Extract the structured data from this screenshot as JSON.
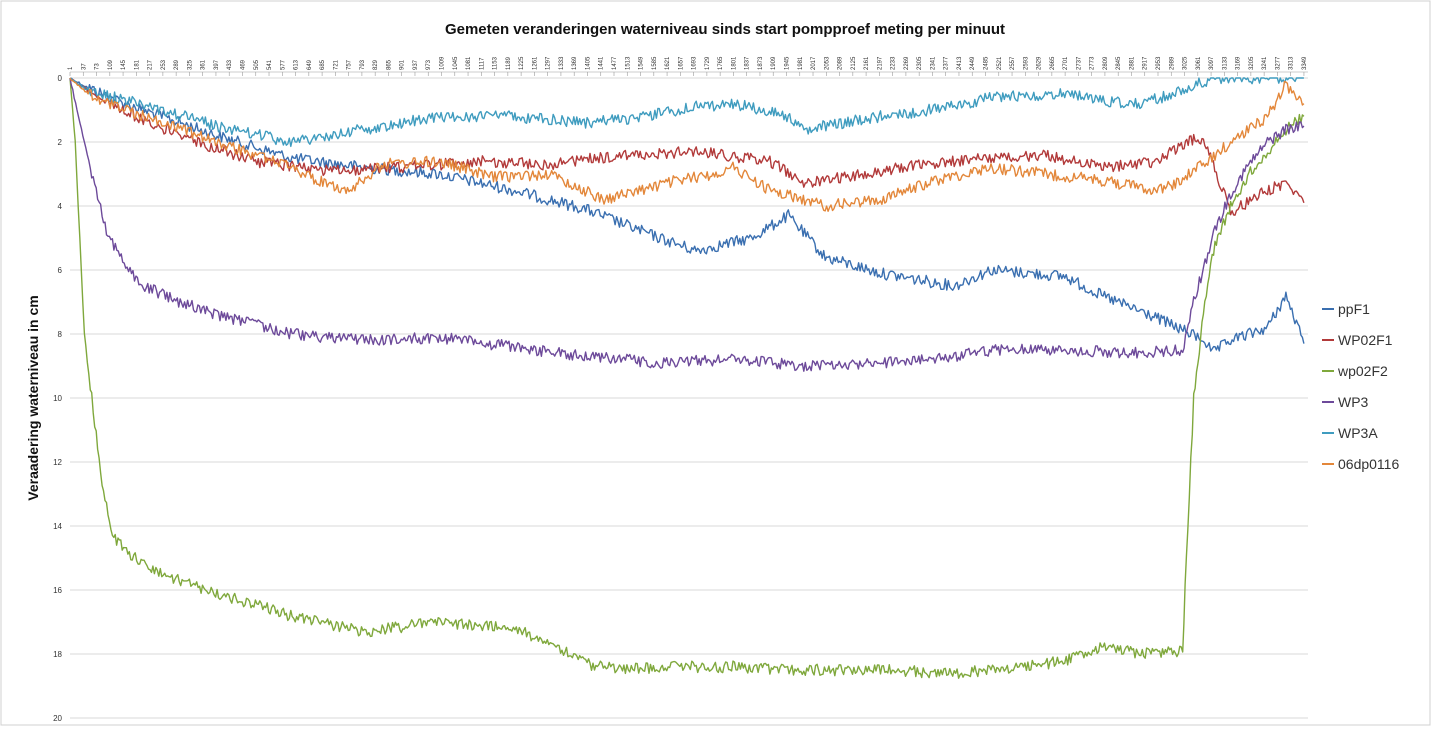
{
  "chart_data": {
    "type": "line",
    "title": "Gemeten veranderingen waterniveau sinds start pompproef meting per minuut",
    "ylabel": "Veraadering waterniveau in cm",
    "xlabel": "",
    "y_inverted": true,
    "ylim": [
      0,
      20
    ],
    "yticks": [
      "0",
      "2",
      "4",
      "6",
      "8",
      "10",
      "12",
      "14",
      "16",
      "18",
      "20"
    ],
    "xlim": [
      1,
      3360
    ],
    "xticks": [
      "1",
      "37",
      "73",
      "109",
      "145",
      "181",
      "217",
      "253",
      "289",
      "325",
      "361",
      "397",
      "433",
      "469",
      "505",
      "541",
      "577",
      "613",
      "649",
      "685",
      "721",
      "757",
      "793",
      "829",
      "865",
      "901",
      "937",
      "973",
      "1009",
      "1045",
      "1081",
      "1117",
      "1153",
      "1189",
      "1225",
      "1261",
      "1297",
      "1333",
      "1369",
      "1405",
      "1441",
      "1477",
      "1513",
      "1549",
      "1585",
      "1621",
      "1657",
      "1693",
      "1729",
      "1765",
      "1801",
      "1837",
      "1873",
      "1909",
      "1945",
      "1981",
      "2017",
      "2053",
      "2089",
      "2125",
      "2161",
      "2197",
      "2233",
      "2269",
      "2305",
      "2341",
      "2377",
      "2413",
      "2449",
      "2485",
      "2521",
      "2557",
      "2593",
      "2629",
      "2665",
      "2701",
      "2737",
      "2773",
      "2809",
      "2845",
      "2881",
      "2917",
      "2953",
      "2989",
      "3025",
      "3061",
      "3097",
      "3133",
      "3169",
      "3205",
      "3241",
      "3277",
      "3313",
      "3349"
    ],
    "grid": true,
    "legend_position": "right",
    "series": [
      {
        "name": "ppF1",
        "color": "#3a6fb0",
        "x": [
          1,
          50,
          150,
          250,
          400,
          600,
          800,
          1000,
          1200,
          1400,
          1600,
          1700,
          1850,
          1950,
          2050,
          2200,
          2400,
          2500,
          2700,
          2800,
          2950,
          3080,
          3100,
          3150,
          3250,
          3300,
          3349
        ],
        "y": [
          0,
          0.3,
          0.8,
          1.2,
          1.8,
          2.5,
          2.8,
          3.0,
          3.5,
          4.1,
          5.0,
          5.4,
          5.0,
          4.3,
          5.6,
          6.1,
          6.5,
          6.0,
          6.2,
          6.8,
          7.5,
          8.2,
          8.6,
          8.2,
          7.8,
          6.8,
          8.3
        ]
      },
      {
        "name": "WP02F1",
        "color": "#b23a3a",
        "x": [
          1,
          100,
          300,
          500,
          700,
          900,
          1100,
          1300,
          1500,
          1700,
          1900,
          2000,
          2150,
          2300,
          2500,
          2650,
          2800,
          2950,
          3020,
          3050,
          3080,
          3150,
          3250,
          3300,
          3349
        ],
        "y": [
          0,
          0.8,
          1.8,
          2.6,
          2.9,
          2.8,
          2.6,
          2.7,
          2.4,
          2.3,
          2.6,
          3.3,
          3.0,
          2.7,
          2.5,
          2.4,
          2.8,
          2.6,
          2.1,
          1.9,
          2.0,
          4.2,
          3.5,
          3.3,
          3.9
        ]
      },
      {
        "name": "wp02F2",
        "color": "#7fa83c",
        "x": [
          1,
          15,
          40,
          80,
          100,
          120,
          150,
          250,
          400,
          600,
          800,
          1000,
          1200,
          1300,
          1400,
          1500,
          1600,
          1800,
          2000,
          2200,
          2400,
          2600,
          2700,
          2800,
          2930,
          3020,
          3030,
          3050,
          3080,
          3100,
          3150,
          3200,
          3250,
          3300,
          3349
        ],
        "y": [
          0,
          2.0,
          8.0,
          12.0,
          13.4,
          14.3,
          14.8,
          15.5,
          16.1,
          16.8,
          17.3,
          17.0,
          17.2,
          17.6,
          18.3,
          18.5,
          18.4,
          18.4,
          18.5,
          18.5,
          18.6,
          18.4,
          18.2,
          17.8,
          18.0,
          17.9,
          15.0,
          10.0,
          7.0,
          5.5,
          4.0,
          3.0,
          2.3,
          1.6,
          1.2
        ]
      },
      {
        "name": "WP3",
        "color": "#6d4a9a",
        "x": [
          1,
          20,
          60,
          100,
          140,
          160,
          200,
          300,
          400,
          600,
          800,
          1000,
          1200,
          1400,
          1600,
          1800,
          2000,
          2200,
          2400,
          2500,
          2700,
          2900,
          3020,
          3050,
          3100,
          3150,
          3200,
          3250,
          3300,
          3349
        ],
        "y": [
          0,
          1.0,
          3.0,
          4.8,
          5.6,
          6.0,
          6.5,
          7.0,
          7.4,
          8.0,
          8.2,
          8.1,
          8.4,
          8.7,
          8.9,
          8.8,
          9.0,
          8.9,
          8.7,
          8.5,
          8.5,
          8.6,
          8.5,
          7.0,
          5.0,
          3.6,
          2.7,
          2.0,
          1.6,
          1.5
        ]
      },
      {
        "name": "WP3A",
        "color": "#3f9cbf",
        "x": [
          1,
          50,
          150,
          250,
          400,
          600,
          800,
          1000,
          1200,
          1400,
          1500,
          1700,
          1800,
          1950,
          2000,
          2100,
          2200,
          2400,
          2500,
          2700,
          2800,
          2900,
          3000,
          3100,
          3349
        ],
        "y": [
          0,
          0.4,
          0.7,
          1.0,
          1.5,
          2.0,
          1.6,
          1.2,
          1.2,
          1.4,
          1.3,
          0.9,
          0.8,
          1.2,
          1.6,
          1.4,
          1.2,
          0.9,
          0.6,
          0.5,
          0.7,
          0.8,
          0.5,
          0.0,
          0.0
        ]
      },
      {
        "name": "06dp0116",
        "color": "#e3873a",
        "x": [
          1,
          50,
          150,
          250,
          400,
          600,
          750,
          850,
          1000,
          1150,
          1300,
          1450,
          1550,
          1650,
          1750,
          1800,
          1900,
          2050,
          2200,
          2350,
          2500,
          2650,
          2800,
          2950,
          3000,
          3100,
          3150,
          3250,
          3300,
          3349
        ],
        "y": [
          0,
          0.5,
          1.0,
          1.4,
          2.0,
          2.8,
          3.6,
          2.7,
          2.6,
          3.1,
          3.0,
          3.8,
          3.5,
          3.2,
          3.0,
          2.8,
          3.5,
          4.0,
          3.8,
          3.2,
          2.8,
          3.0,
          3.2,
          3.5,
          3.3,
          2.5,
          2.0,
          1.2,
          0.2,
          0.8
        ]
      }
    ]
  }
}
